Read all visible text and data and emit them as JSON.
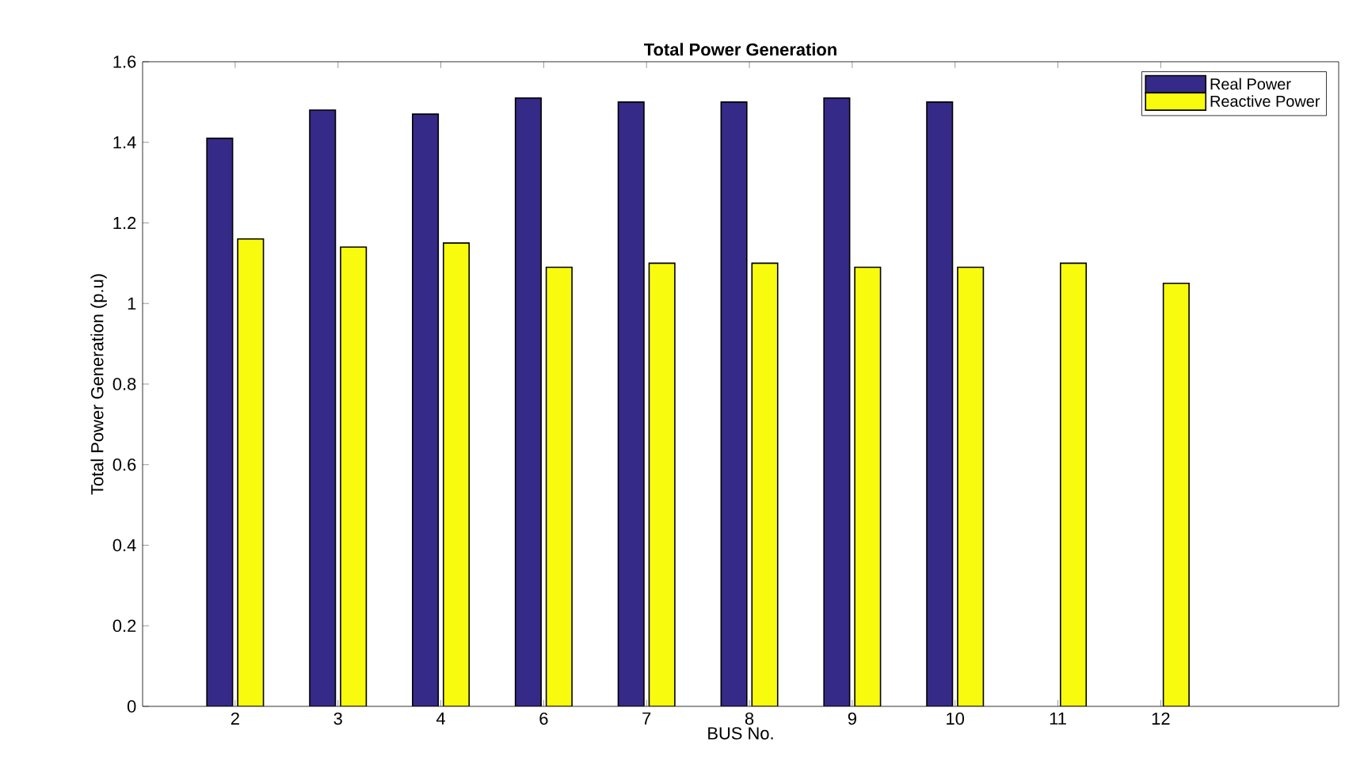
{
  "chart_data": {
    "type": "bar",
    "title": "Total Power Generation",
    "xlabel": "BUS No.",
    "ylabel": "Total Power Generation (p.u)",
    "categories": [
      "2",
      "3",
      "4",
      "6",
      "7",
      "8",
      "9",
      "10",
      "11",
      "12"
    ],
    "series": [
      {
        "name": "Real Power",
        "color": "#352a87",
        "values": [
          1.41,
          1.48,
          1.47,
          1.51,
          1.5,
          1.5,
          1.51,
          1.5,
          null,
          null
        ]
      },
      {
        "name": "Reactive Power",
        "color": "#f9fb0e",
        "values": [
          1.16,
          1.14,
          1.15,
          1.09,
          1.1,
          1.1,
          1.09,
          1.09,
          1.1,
          1.05
        ]
      }
    ],
    "ylim": [
      0,
      1.6
    ],
    "yticks": [
      0,
      0.2,
      0.4,
      0.6,
      0.8,
      1,
      1.2,
      1.4,
      1.6
    ],
    "legend": "top right",
    "grid": false
  }
}
